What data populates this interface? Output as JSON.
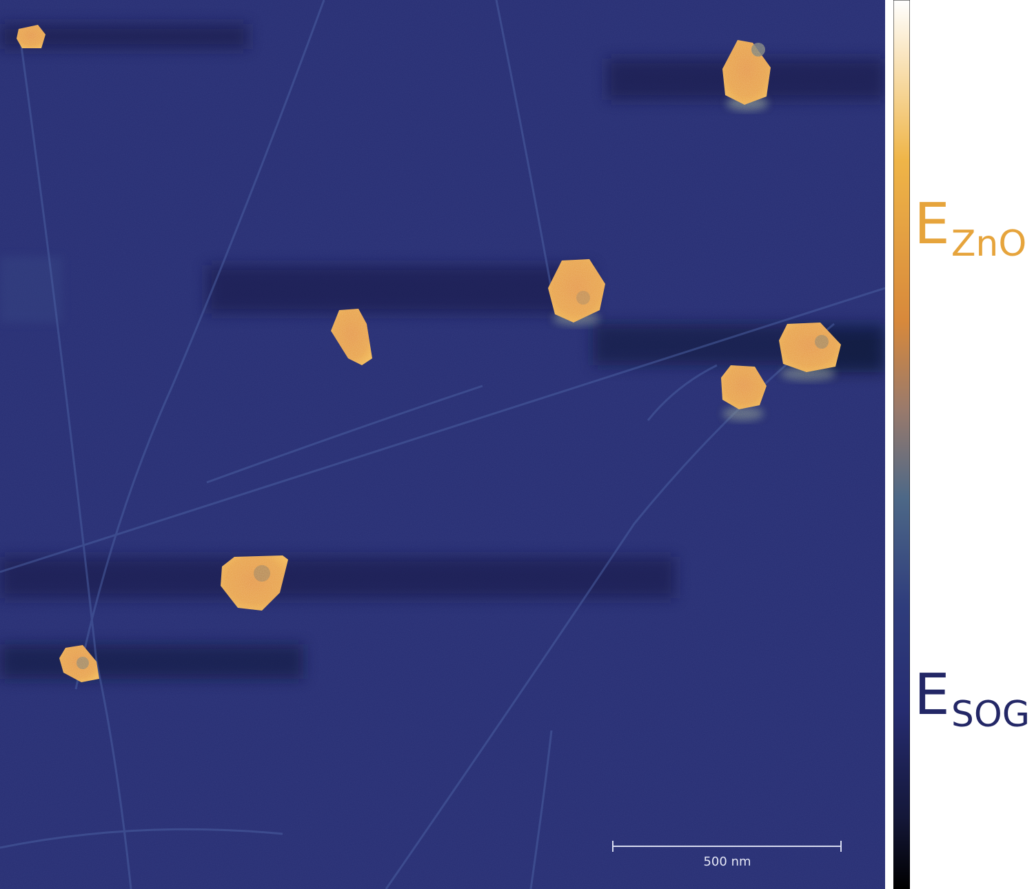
{
  "colorbar": {
    "upper_label": {
      "main": "E",
      "sub": "ZnO",
      "color": "#E6A43C"
    },
    "lower_label": {
      "main": "E",
      "sub": "SOG",
      "color": "#232766"
    },
    "gradient_stops": [
      "#000000",
      "#141738",
      "#262c70",
      "#2f3d7c",
      "#4d6887",
      "#9a7a6b",
      "#d8893b",
      "#efb548",
      "#ffffff"
    ]
  },
  "image": {
    "background_color": "#262d72",
    "particle_color": "#e69a3c",
    "scale_bar": {
      "label": "500 nm"
    }
  }
}
